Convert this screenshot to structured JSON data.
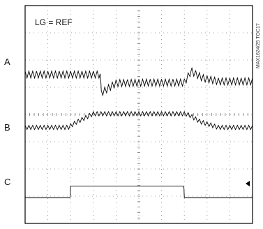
{
  "chart_data": {
    "type": "line",
    "annotation": "LG = REF",
    "figure_id": "MAX1624/25 TOC17",
    "grid": true,
    "grid_divisions": {
      "x": 10,
      "y": 8
    },
    "series": [
      {
        "name": "A",
        "x": [
          0.0,
          3.3,
          3.35,
          4.0,
          5.5,
          7.0,
          7.2,
          7.3,
          7.8,
          8.5,
          10.0
        ],
        "y": [
          1.6,
          1.6,
          0.0,
          0.85,
          0.9,
          0.9,
          1.55,
          1.9,
          1.3,
          1.0,
          1.0
        ]
      },
      {
        "name": "B",
        "x": [
          0.0,
          1.9,
          2.2,
          3.0,
          5.0,
          7.0,
          7.2,
          7.7,
          8.5,
          10.0
        ],
        "y": [
          1.8,
          1.8,
          2.2,
          3.0,
          3.0,
          3.0,
          2.9,
          2.3,
          1.8,
          1.8
        ]
      },
      {
        "name": "C",
        "x": [
          0.0,
          1.98,
          2.0,
          6.98,
          7.0,
          10.0
        ],
        "y": [
          0.0,
          0.0,
          1.0,
          1.0,
          0.0,
          0.0
        ]
      }
    ]
  }
}
